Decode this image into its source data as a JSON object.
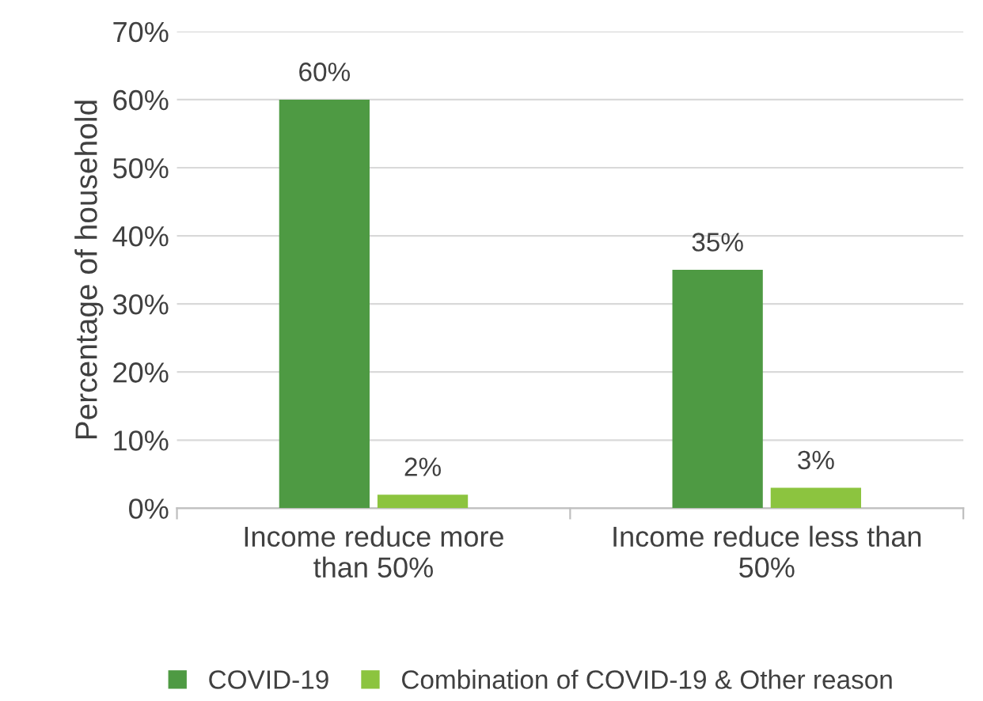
{
  "chart_data": {
    "type": "bar",
    "ylabel": "Percentage of household",
    "categories": [
      "Income reduce more\nthan 50%",
      "Income reduce less than\n50%"
    ],
    "series": [
      {
        "name": "COVID-19",
        "color": "#4e9a43",
        "values": [
          60,
          35
        ],
        "value_labels": [
          "60%",
          "35%"
        ]
      },
      {
        "name": "Combination of COVID-19 & Other reason",
        "color": "#8cc43f",
        "values": [
          2,
          3
        ],
        "value_labels": [
          "2%",
          "3%"
        ]
      }
    ],
    "ylim": [
      0,
      70
    ],
    "yticks": [
      {
        "value": 0,
        "label": "0%"
      },
      {
        "value": 10,
        "label": "10%"
      },
      {
        "value": 20,
        "label": "20%"
      },
      {
        "value": 30,
        "label": "30%"
      },
      {
        "value": 40,
        "label": "40%"
      },
      {
        "value": 50,
        "label": "50%"
      },
      {
        "value": 60,
        "label": "60%"
      },
      {
        "value": 70,
        "label": "70%"
      }
    ],
    "grid": "y",
    "legend": "bottom"
  }
}
